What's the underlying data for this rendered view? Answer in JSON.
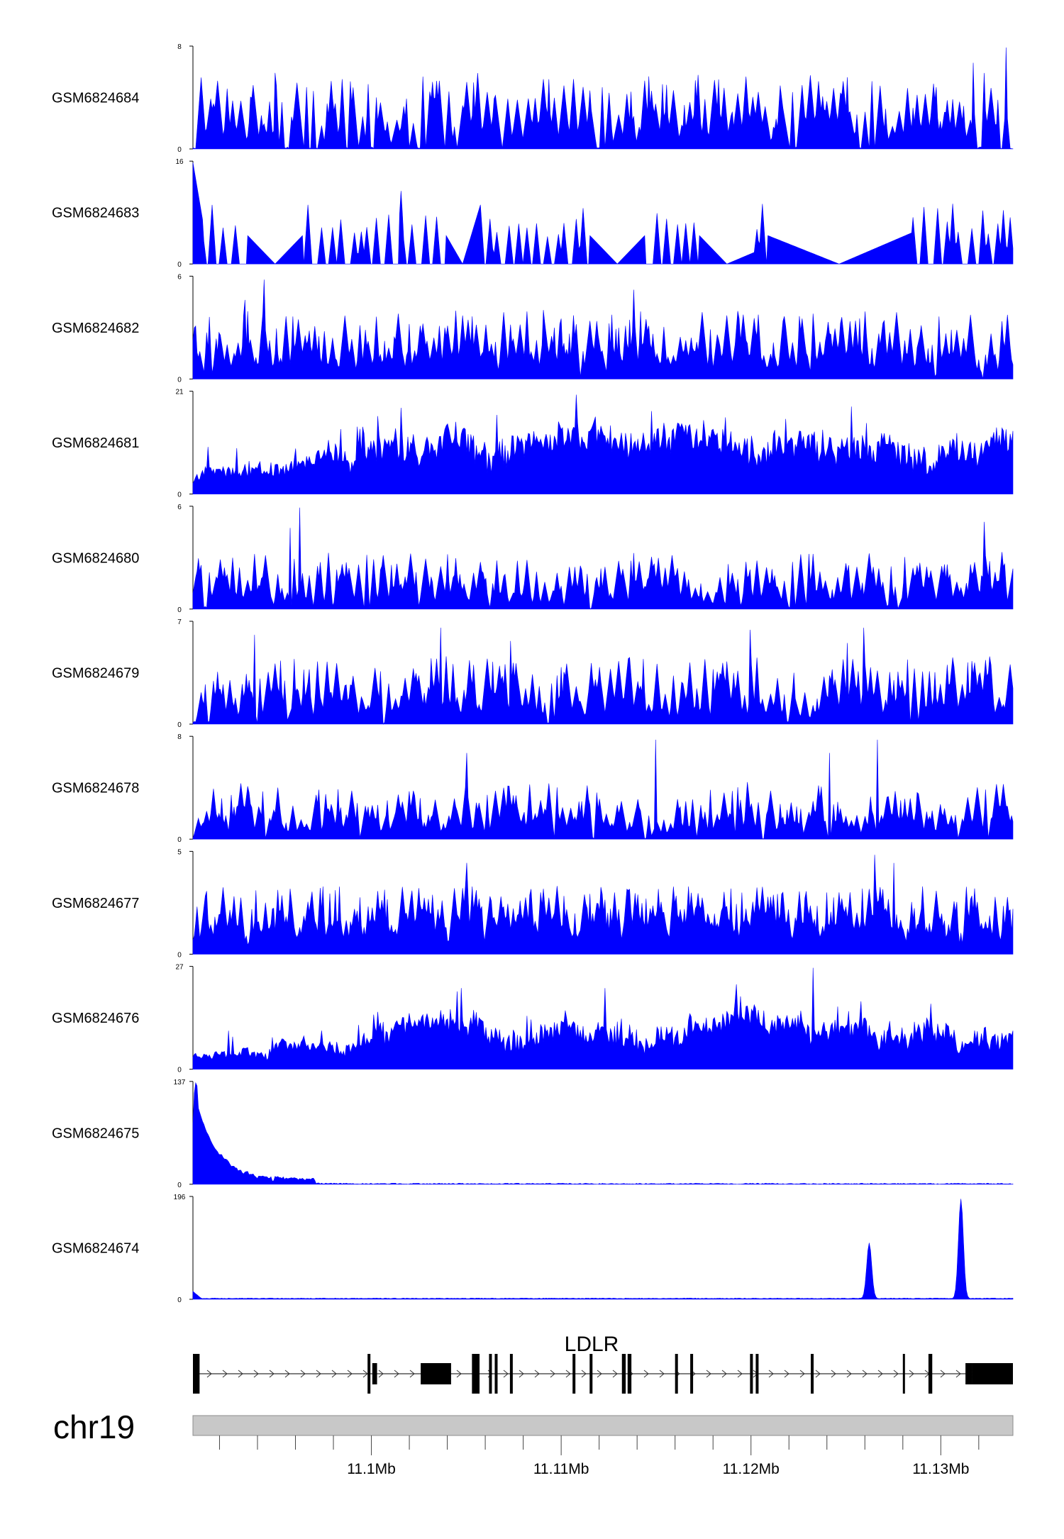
{
  "chart_data": {
    "type": "area",
    "title": "",
    "xlabel": "",
    "ylabel": "",
    "color": "#0000FF",
    "region": {
      "chromosome": "chr19",
      "start": 11090600,
      "end": 11133800,
      "unit": "bp"
    },
    "x_axis": {
      "major_ticks": [
        11100000,
        11110000,
        11120000,
        11130000
      ],
      "major_labels": [
        "11.1Mb",
        "11.11Mb",
        "11.12Mb",
        "11.13Mb"
      ],
      "minor_tick_step": 2000
    },
    "series": [
      {
        "name": "GSM6824684",
        "ylim": [
          0,
          8
        ],
        "ymax_label": "8",
        "ymin_label": "0"
      },
      {
        "name": "GSM6824683",
        "ylim": [
          0,
          16
        ],
        "ymax_label": "16",
        "ymin_label": "0"
      },
      {
        "name": "GSM6824682",
        "ylim": [
          0,
          6
        ],
        "ymax_label": "6",
        "ymin_label": "0"
      },
      {
        "name": "GSM6824681",
        "ylim": [
          0,
          21
        ],
        "ymax_label": "21",
        "ymin_label": "0"
      },
      {
        "name": "GSM6824680",
        "ylim": [
          0,
          6
        ],
        "ymax_label": "6",
        "ymin_label": "0"
      },
      {
        "name": "GSM6824679",
        "ylim": [
          0,
          7
        ],
        "ymax_label": "7",
        "ymin_label": "0"
      },
      {
        "name": "GSM6824678",
        "ylim": [
          0,
          8
        ],
        "ymax_label": "8",
        "ymin_label": "0"
      },
      {
        "name": "GSM6824677",
        "ylim": [
          0,
          5
        ],
        "ymax_label": "5",
        "ymin_label": "0"
      },
      {
        "name": "GSM6824676",
        "ylim": [
          0,
          27
        ],
        "ymax_label": "27",
        "ymin_label": "0"
      },
      {
        "name": "GSM6824675",
        "ylim": [
          0,
          137
        ],
        "ymax_label": "137",
        "ymin_label": "0"
      },
      {
        "name": "GSM6824674",
        "ylim": [
          0,
          196
        ],
        "ymax_label": "196",
        "ymin_label": "0"
      }
    ],
    "gene": {
      "name": "LDLR",
      "strand": "+",
      "exons": [
        {
          "start": 11090600,
          "end": 11090950
        },
        {
          "start": 11099800,
          "end": 11099950
        },
        {
          "start": 11100050,
          "end": 11100300
        },
        {
          "start": 11102600,
          "end": 11104200
        },
        {
          "start": 11105300,
          "end": 11105700
        },
        {
          "start": 11106200,
          "end": 11106350
        },
        {
          "start": 11106500,
          "end": 11106650
        },
        {
          "start": 11107300,
          "end": 11107450
        },
        {
          "start": 11110600,
          "end": 11110750
        },
        {
          "start": 11111500,
          "end": 11111650
        },
        {
          "start": 11113200,
          "end": 11113400
        },
        {
          "start": 11113500,
          "end": 11113700
        },
        {
          "start": 11116000,
          "end": 11116150
        },
        {
          "start": 11116800,
          "end": 11116950
        },
        {
          "start": 11119950,
          "end": 11120100
        },
        {
          "start": 11120250,
          "end": 11120400
        },
        {
          "start": 11123150,
          "end": 11123300
        },
        {
          "start": 11128000,
          "end": 11128100
        },
        {
          "start": 11129350,
          "end": 11129550
        },
        {
          "start": 11131300,
          "end": 11131650
        },
        {
          "start": 11131650,
          "end": 11133800
        }
      ]
    }
  }
}
